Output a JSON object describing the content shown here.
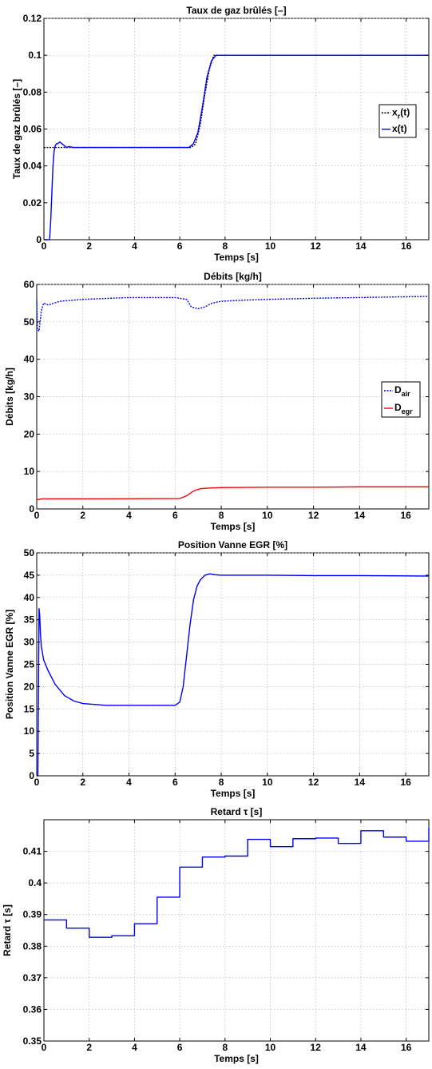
{
  "chart_data": [
    {
      "type": "line",
      "title": "Taux de gaz brûlés  [–]",
      "xlabel": "Temps [s]",
      "ylabel": "Taux de gaz brûlés  [–]",
      "xlim": [
        0,
        17
      ],
      "ylim": [
        0,
        0.12
      ],
      "xticks": [
        0,
        2,
        4,
        6,
        8,
        10,
        12,
        14,
        16
      ],
      "yticks": [
        0,
        0.02,
        0.04,
        0.06,
        0.08,
        0.1,
        0.12
      ],
      "xtick_labels": [
        "0",
        "2",
        "4",
        "6",
        "8",
        "10",
        "12",
        "14",
        "16"
      ],
      "ytick_labels": [
        "0",
        "0.02",
        "0.04",
        "0.06",
        "0.08",
        "0.1",
        "0.12"
      ],
      "grid": true,
      "legend": "right",
      "series": [
        {
          "name": "x",
          "name_sub": "r",
          "name_suffix": "(t)",
          "color": "#000000",
          "style": "dotted",
          "x": [
            0,
            6.5,
            6.7,
            6.9,
            7.1,
            7.3,
            7.5,
            17
          ],
          "y": [
            0.05,
            0.05,
            0.052,
            0.062,
            0.078,
            0.092,
            0.1,
            0.1
          ]
        },
        {
          "name": "x(t)",
          "color": "#0000ff",
          "style": "solid",
          "x": [
            0,
            0.25,
            0.3,
            0.35,
            0.4,
            0.45,
            0.5,
            0.55,
            0.6,
            0.7,
            0.8,
            0.9,
            1.0,
            1.1,
            1.3,
            1.5,
            2,
            4,
            6.4,
            6.6,
            6.8,
            7.0,
            7.2,
            7.4,
            7.6,
            7.8,
            8.0,
            10,
            12,
            14,
            17
          ],
          "y": [
            0,
            0,
            0.01,
            0.025,
            0.04,
            0.048,
            0.051,
            0.052,
            0.052,
            0.053,
            0.052,
            0.051,
            0.05,
            0.0505,
            0.05,
            0.05,
            0.05,
            0.05,
            0.05,
            0.052,
            0.058,
            0.072,
            0.088,
            0.097,
            0.1,
            0.1,
            0.1,
            0.1,
            0.1,
            0.1,
            0.1
          ]
        }
      ]
    },
    {
      "type": "line",
      "title": "Débits [kg/h]",
      "xlabel": "Temps [s]",
      "ylabel": "Débits [kg/h]",
      "xlim": [
        0,
        17
      ],
      "ylim": [
        0,
        60
      ],
      "xticks": [
        0,
        2,
        4,
        6,
        8,
        10,
        12,
        14,
        16
      ],
      "yticks": [
        0,
        10,
        20,
        30,
        40,
        50,
        60
      ],
      "xtick_labels": [
        "0",
        "2",
        "4",
        "6",
        "8",
        "10",
        "12",
        "14",
        "16"
      ],
      "ytick_labels": [
        "0",
        "10",
        "20",
        "30",
        "40",
        "50",
        "60"
      ],
      "grid": true,
      "legend": "right",
      "series": [
        {
          "name": "D",
          "name_sub": "air",
          "color": "#0000ff",
          "style": "dotted",
          "x": [
            0,
            0.03,
            0.1,
            0.2,
            0.3,
            0.5,
            1,
            2,
            4,
            6,
            6.5,
            6.7,
            7,
            7.3,
            7.6,
            8,
            9,
            10,
            12,
            14,
            17
          ],
          "y": [
            56,
            48,
            47.5,
            53,
            55,
            54.5,
            55.5,
            56,
            56.5,
            56.5,
            56,
            54,
            53.5,
            54,
            55,
            55.5,
            55.8,
            56,
            56.3,
            56.5,
            56.8
          ]
        },
        {
          "name": "D",
          "name_sub": "egr",
          "color": "#ff0000",
          "style": "solid",
          "x": [
            0,
            0.1,
            0.2,
            1,
            3,
            6.2,
            6.5,
            6.8,
            7.1,
            7.5,
            8,
            10,
            12,
            14,
            17
          ],
          "y": [
            2.5,
            2.5,
            2.7,
            2.7,
            2.7,
            2.8,
            3.5,
            4.8,
            5.4,
            5.6,
            5.7,
            5.8,
            5.8,
            5.9,
            5.9
          ]
        }
      ]
    },
    {
      "type": "line",
      "title": "Position Vanne EGR [%]",
      "xlabel": "Temps [s]",
      "ylabel": "Position Vanne EGR [%]",
      "xlim": [
        0,
        17
      ],
      "ylim": [
        0,
        50
      ],
      "xticks": [
        0,
        2,
        4,
        6,
        8,
        10,
        12,
        14,
        16
      ],
      "yticks": [
        0,
        5,
        10,
        15,
        20,
        25,
        30,
        35,
        40,
        45,
        50
      ],
      "xtick_labels": [
        "0",
        "2",
        "4",
        "6",
        "8",
        "10",
        "12",
        "14",
        "16"
      ],
      "ytick_labels": [
        "0",
        "5",
        "10",
        "15",
        "20",
        "25",
        "30",
        "35",
        "40",
        "45",
        "50"
      ],
      "grid": true,
      "series": [
        {
          "name": "",
          "color": "#0000ff",
          "style": "solid",
          "x": [
            0,
            0.05,
            0.1,
            0.13,
            0.16,
            0.2,
            0.3,
            0.5,
            0.8,
            1.2,
            1.6,
            2,
            3,
            4,
            5,
            6,
            6.2,
            6.35,
            6.5,
            6.65,
            6.8,
            6.95,
            7.1,
            7.3,
            7.5,
            7.7,
            8,
            10,
            12,
            14,
            17
          ],
          "y": [
            0,
            0,
            37.5,
            36,
            32,
            29,
            26,
            23.5,
            20.5,
            18,
            16.8,
            16.2,
            15.8,
            15.8,
            15.8,
            15.8,
            16.5,
            20,
            27,
            34,
            39.5,
            42.5,
            44,
            45,
            45.3,
            45.1,
            45,
            45,
            44.9,
            44.9,
            44.8
          ]
        }
      ]
    },
    {
      "type": "line",
      "title": "Retard τ  [s]",
      "xlabel": "Temps [s]",
      "ylabel": "Retard τ [s]",
      "xlim": [
        0,
        17
      ],
      "ylim": [
        0.35,
        0.42
      ],
      "xticks": [
        0,
        2,
        4,
        6,
        8,
        10,
        12,
        14,
        16
      ],
      "yticks": [
        0.35,
        0.36,
        0.37,
        0.38,
        0.39,
        0.4,
        0.41
      ],
      "xtick_labels": [
        "0",
        "2",
        "4",
        "6",
        "8",
        "10",
        "12",
        "14",
        "16"
      ],
      "ytick_labels": [
        "0.35",
        "0.36",
        "0.37",
        "0.38",
        "0.39",
        "0.4",
        "0.41"
      ],
      "grid": true,
      "series": [
        {
          "name": "",
          "color": "#0000ff",
          "style": "step",
          "x": [
            0,
            1,
            2,
            3,
            4,
            5,
            6,
            7,
            8,
            9,
            10,
            11,
            12,
            13,
            14,
            15,
            16,
            17
          ],
          "y": [
            0.3883,
            0.3857,
            0.3828,
            0.3833,
            0.3871,
            0.3955,
            0.405,
            0.4082,
            0.4085,
            0.4138,
            0.4115,
            0.414,
            0.4142,
            0.4125,
            0.4165,
            0.4145,
            0.4132,
            0.4175
          ]
        }
      ]
    }
  ]
}
